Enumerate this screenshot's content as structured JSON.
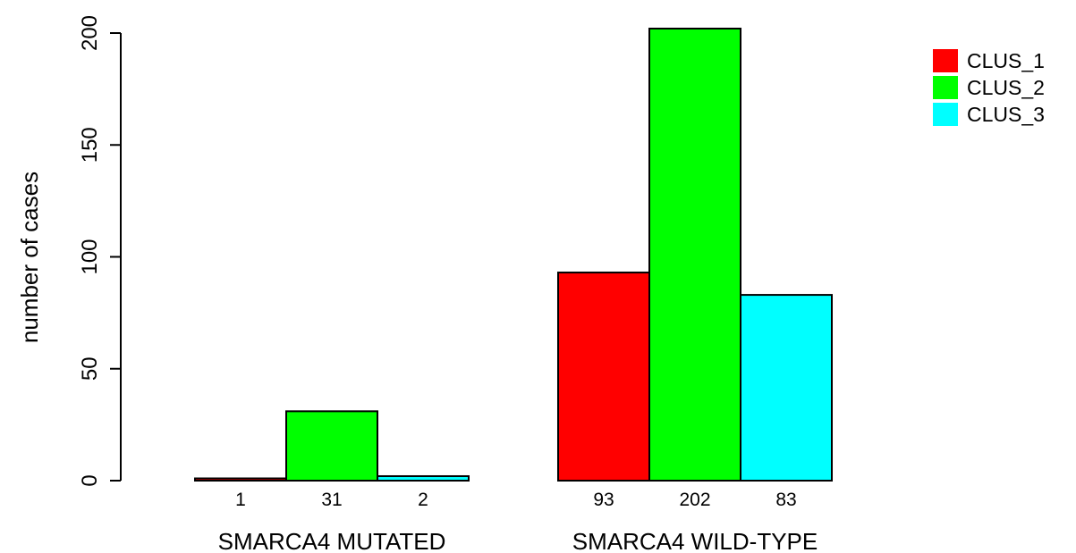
{
  "chart_data": {
    "type": "bar",
    "layout": "grouped",
    "groups": [
      "SMARCA4 MUTATED",
      "SMARCA4 WILD-TYPE"
    ],
    "series": [
      {
        "name": "CLUS_1",
        "color": "#ff0000",
        "values": [
          1,
          93
        ]
      },
      {
        "name": "CLUS_2",
        "color": "#00ff00",
        "values": [
          31,
          202
        ]
      },
      {
        "name": "CLUS_3",
        "color": "#00ffff",
        "values": [
          2,
          83
        ]
      }
    ],
    "bar_labels": [
      [
        "1",
        "31",
        "2"
      ],
      [
        "93",
        "202",
        "83"
      ]
    ],
    "ylabel": "number of cases",
    "yticks": [
      0,
      50,
      100,
      150,
      200
    ],
    "ylim": [
      0,
      202
    ],
    "grid": false,
    "legend": {
      "position": "top-right",
      "entries": [
        "CLUS_1",
        "CLUS_2",
        "CLUS_3"
      ]
    }
  }
}
